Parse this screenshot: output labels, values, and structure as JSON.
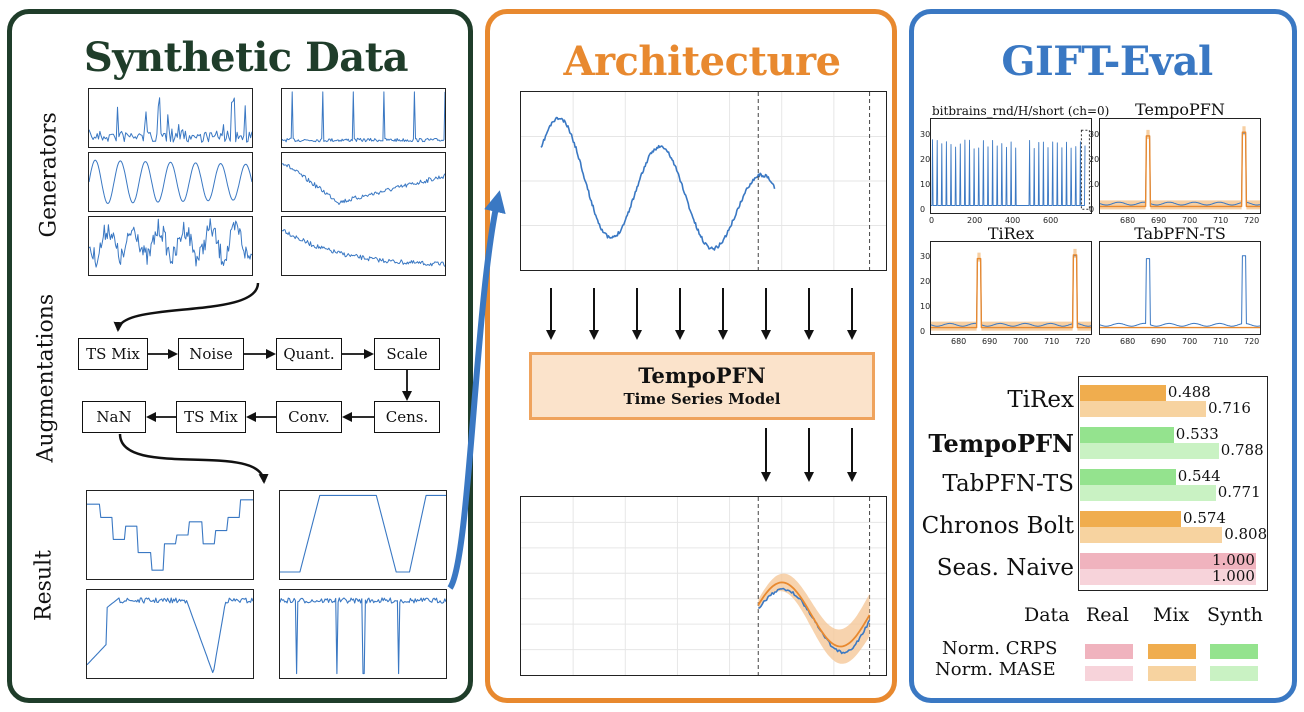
{
  "panels": {
    "synthetic": {
      "title": "Synthetic Data",
      "color": "#1f3d2a",
      "row_labels": {
        "generators": "Generators",
        "augmentations": "Augmentations",
        "result": "Result"
      },
      "augmentation_steps": [
        "TS Mix",
        "Noise",
        "Quant.",
        "Scale",
        "Cens.",
        "Conv.",
        "TS Mix",
        "NaN"
      ]
    },
    "architecture": {
      "title": "Architecture",
      "color": "#e8892f",
      "model_name": "TempoPFN",
      "model_subtitle": "Time Series Model"
    },
    "gift_eval": {
      "title": "GIFT-Eval",
      "color": "#3a78c3",
      "plot_titles": [
        "bitbrains_rnd/H/short (ch=0)",
        "TempoPFN",
        "TiRex",
        "TabPFN-TS"
      ],
      "x_ticks_small": [
        "0",
        "200",
        "400",
        "600"
      ],
      "x_ticks_zoom": [
        "680",
        "690",
        "700",
        "710",
        "720"
      ],
      "y_ticks": [
        "0",
        "10",
        "20",
        "30"
      ]
    }
  },
  "chart_data": {
    "type": "bar",
    "title": "",
    "categories": [
      "TiRex",
      "TempoPFN",
      "TabPFN-TS",
      "Chronos Bolt",
      "Seas. Naive"
    ],
    "highlight": "TempoPFN",
    "series": [
      {
        "name": "Norm. CRPS",
        "values": [
          0.488,
          0.533,
          0.544,
          0.574,
          1.0
        ]
      },
      {
        "name": "Norm. MASE",
        "values": [
          0.716,
          0.788,
          0.771,
          0.808,
          1.0
        ]
      }
    ],
    "value_labels": {
      "crps": [
        "0.488",
        "0.533",
        "0.544",
        "0.574",
        "1.000"
      ],
      "mase": [
        "0.716",
        "0.788",
        "0.771",
        "0.808",
        "1.000"
      ]
    },
    "data_source": [
      "Mix",
      "Synth",
      "Synth",
      "Mix",
      "Real"
    ],
    "xlim": [
      0,
      1.0
    ],
    "colors": {
      "Real": {
        "crps": "#f0b3be",
        "mase": "#f7d3da"
      },
      "Mix": {
        "crps": "#f0ad4e",
        "mase": "#f7d3a0"
      },
      "Synth": {
        "crps": "#94e38e",
        "mase": "#c9f2c3"
      }
    },
    "legend": {
      "header": "Data",
      "columns": [
        "Real",
        "Mix",
        "Synth"
      ],
      "rows": [
        "Norm. CRPS",
        "Norm. MASE"
      ],
      "placement": "bottom"
    }
  }
}
